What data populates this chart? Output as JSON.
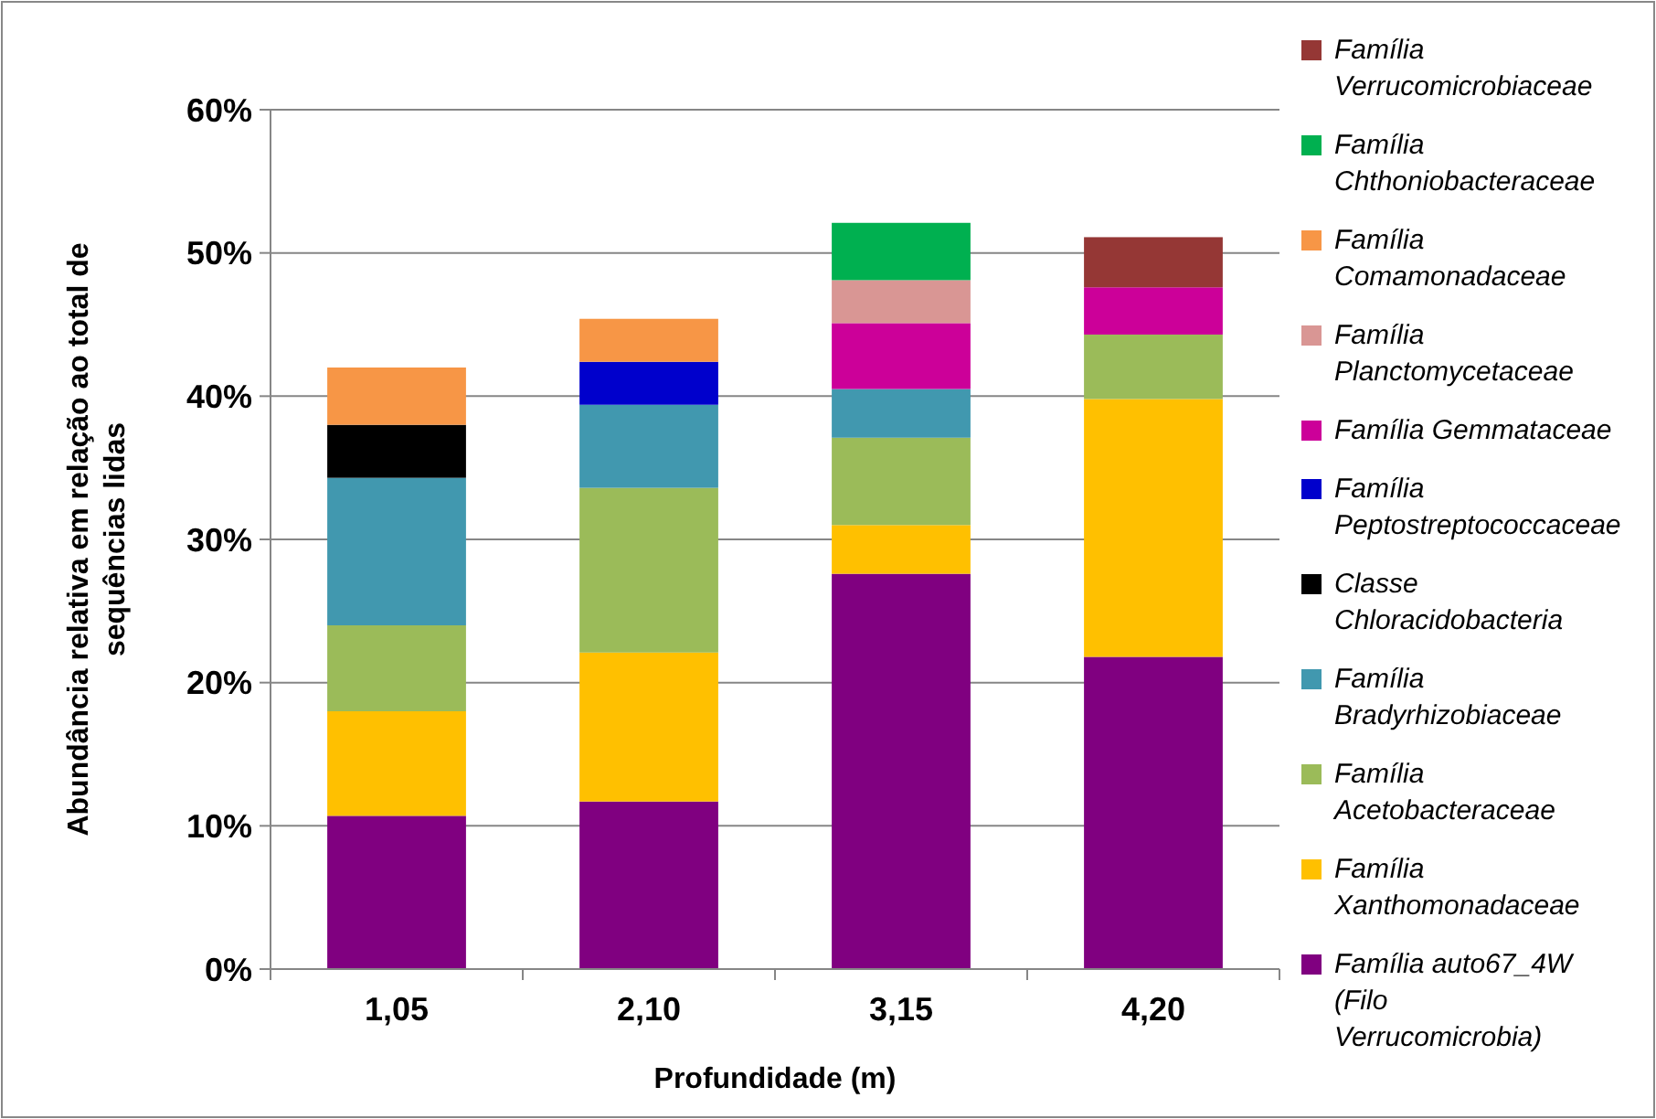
{
  "chart_data": {
    "type": "bar",
    "stacked": true,
    "categories": [
      "1,05",
      "2,10",
      "3,15",
      "4,20"
    ],
    "xlabel": "Profundidade (m)",
    "ylabel": "Abundância relativa em relação ao total de sequências lidas",
    "ylim": [
      0,
      60
    ],
    "yticks": [
      {
        "value": 0,
        "label": "0%"
      },
      {
        "value": 10,
        "label": "10%"
      },
      {
        "value": 20,
        "label": "20%"
      },
      {
        "value": 30,
        "label": "30%"
      },
      {
        "value": 40,
        "label": "40%"
      },
      {
        "value": 50,
        "label": "50%"
      },
      {
        "value": 60,
        "label": "60%"
      }
    ],
    "grid": "y",
    "legend": "right",
    "series": [
      {
        "name": "Família auto67_4W (Filo Verrucomicrobia)",
        "color": "#800080",
        "values": [
          10.7,
          11.7,
          27.6,
          21.8
        ]
      },
      {
        "name": "Família Xanthomonadaceae",
        "color": "#ffc000",
        "values": [
          7.3,
          10.4,
          3.4,
          18.0
        ]
      },
      {
        "name": "Família Acetobacteraceae",
        "color": "#9bbb59",
        "values": [
          6.0,
          11.5,
          6.1,
          4.5
        ]
      },
      {
        "name": "Família Bradyrhizobiaceae",
        "color": "#4198af",
        "values": [
          10.3,
          5.8,
          3.4,
          null
        ]
      },
      {
        "name": "Classe Chloracidobacteria",
        "color": "#000000",
        "values": [
          3.7,
          null,
          null,
          null
        ]
      },
      {
        "name": "Família Peptostreptococcaceae",
        "color": "#0000cc",
        "values": [
          null,
          3.0,
          null,
          null
        ]
      },
      {
        "name": "Família Gemmataceae",
        "color": "#cc0099",
        "values": [
          null,
          null,
          4.6,
          3.3
        ]
      },
      {
        "name": "Família Planctomycetaceae",
        "color": "#d99694",
        "values": [
          null,
          null,
          3.0,
          null
        ]
      },
      {
        "name": "Família Comamonadaceae",
        "color": "#f79646",
        "values": [
          4.0,
          3.0,
          null,
          null
        ]
      },
      {
        "name": "Família Chthoniobacteraceae",
        "color": "#00b050",
        "values": [
          null,
          null,
          4.0,
          null
        ]
      },
      {
        "name": "Família Verrucomicrobiaceae",
        "color": "#953735",
        "values": [
          null,
          null,
          null,
          3.5
        ]
      }
    ]
  }
}
